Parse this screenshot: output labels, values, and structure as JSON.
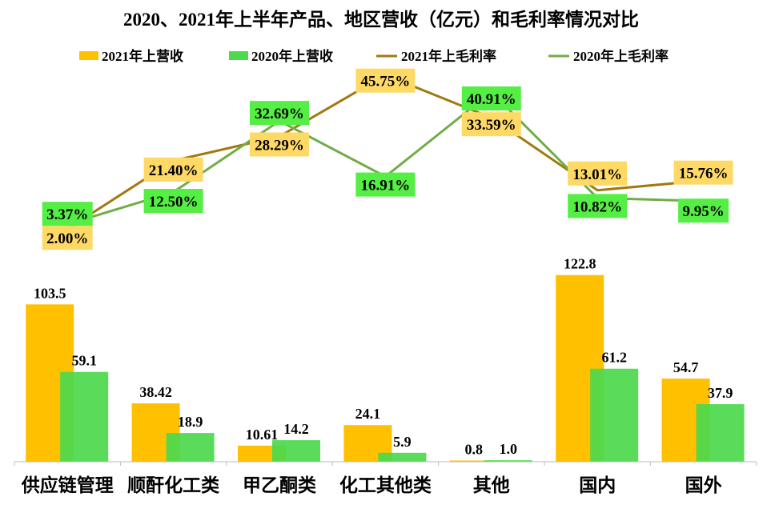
{
  "chart_data": {
    "type": "bar",
    "title": "2020、2021年上半年产品、地区营收（亿元）和毛利率情况对比",
    "categories": [
      "供应链管理",
      "顺酐化工类",
      "甲乙酮类",
      "化工其他类",
      "其他",
      "国内",
      "国外"
    ],
    "legend_position": "top",
    "grid": false,
    "bar_series": [
      {
        "name": "2021年上营收",
        "values": [
          103.5,
          38.42,
          10.61,
          24.1,
          0.8,
          122.8,
          54.7
        ],
        "labels": [
          "103.5",
          "38.42",
          "10.61",
          "24.1",
          "0.8",
          "122.8",
          "54.7"
        ],
        "color": "#FFC000"
      },
      {
        "name": "2020年上营收",
        "values": [
          59.1,
          18.9,
          14.2,
          5.9,
          1.0,
          61.2,
          37.9
        ],
        "labels": [
          "59.1",
          "18.9",
          "14.2",
          "5.9",
          "1.0",
          "61.2",
          "37.9"
        ],
        "color": "#4CD94C"
      }
    ],
    "line_series": [
      {
        "name": "2021年上毛利率",
        "values": [
          2.0,
          21.4,
          28.29,
          45.75,
          33.59,
          13.01,
          15.76
        ],
        "labels": [
          "2.00%",
          "21.40%",
          "28.29%",
          "45.75%",
          "33.59%",
          "13.01%",
          "15.76%"
        ],
        "color": "#A07A10",
        "label_bg": "#FFD966"
      },
      {
        "name": "2020年上毛利率",
        "values": [
          3.37,
          12.5,
          32.69,
          16.91,
          40.91,
          10.82,
          9.95
        ],
        "labels": [
          "3.37%",
          "12.50%",
          "32.69%",
          "16.91%",
          "40.91%",
          "10.82%",
          "9.95%"
        ],
        "color": "#70AD47",
        "label_bg": "#55EE44"
      }
    ]
  }
}
